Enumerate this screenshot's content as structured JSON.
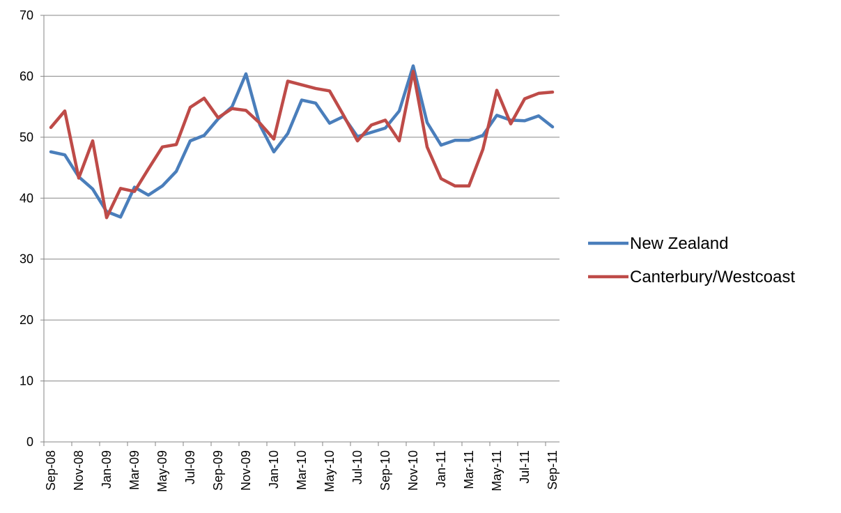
{
  "chart_data": {
    "type": "line",
    "categories": [
      "Sep-08",
      null,
      "Nov-08",
      null,
      "Jan-09",
      null,
      "Mar-09",
      null,
      "May-09",
      null,
      "Jul-09",
      null,
      "Sep-09",
      null,
      "Nov-09",
      null,
      "Jan-10",
      null,
      "Mar-10",
      null,
      "May-10",
      null,
      "Jul-10",
      null,
      "Sep-10",
      null,
      "Nov-10",
      null,
      "Jan-11",
      null,
      "Mar-11",
      null,
      "May-11",
      null,
      "Jul-11",
      null,
      "Sep-11"
    ],
    "series": [
      {
        "name": "New Zealand",
        "color": "#4a7ebb",
        "values": [
          47.6,
          47.1,
          43.5,
          41.5,
          37.8,
          36.9,
          41.8,
          40.5,
          42,
          44.4,
          49.4,
          50.3,
          53,
          55,
          60.4,
          52,
          47.6,
          50.6,
          56.1,
          55.6,
          52.3,
          53.4,
          50.1,
          50.8,
          51.5,
          54.3,
          61.7,
          52.4,
          48.7,
          49.5,
          49.5,
          50.3,
          53.6,
          52.8,
          52.7,
          53.5,
          51.7
        ]
      },
      {
        "name": "Canterbury/Westcoast",
        "color": "#be4b48",
        "values": [
          51.6,
          54.3,
          43.3,
          49.4,
          36.8,
          41.6,
          41.1,
          44.8,
          48.4,
          48.8,
          54.9,
          56.4,
          53.2,
          54.7,
          54.4,
          52.3,
          49.7,
          59.2,
          58.6,
          58,
          57.6,
          53.6,
          49.4,
          52,
          52.8,
          49.4,
          60.8,
          48.4,
          43.2,
          42,
          42,
          48,
          57.7,
          52.2,
          56.3,
          57.2,
          57.4
        ]
      }
    ],
    "ylim": [
      0,
      70
    ],
    "yticks": [
      0,
      10,
      20,
      30,
      40,
      50,
      60,
      70
    ],
    "grid": true,
    "legend": "right"
  }
}
